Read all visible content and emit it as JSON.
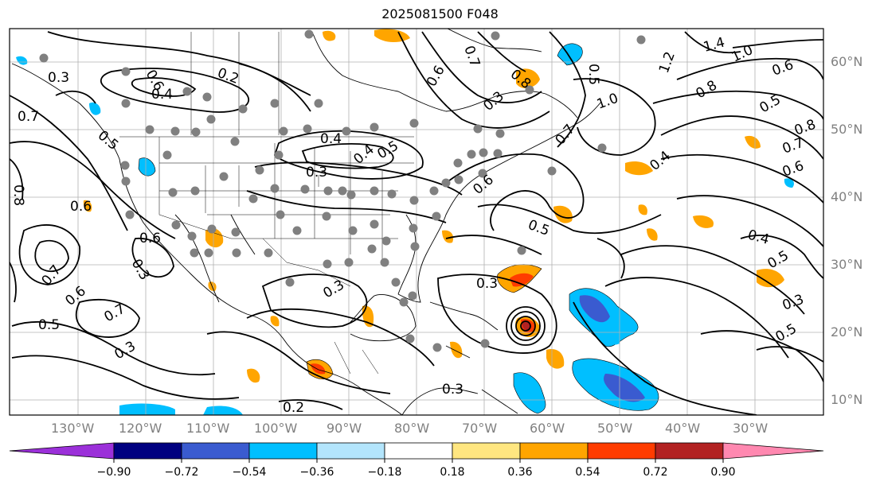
{
  "title": "2025081500 F048",
  "lon_labels": [
    "130°W",
    "120°W",
    "110°W",
    "100°W",
    "90°W",
    "80°W",
    "70°W",
    "60°W",
    "50°W",
    "40°W",
    "30°W"
  ],
  "lat_labels": [
    "60°N",
    "50°N",
    "40°N",
    "30°N",
    "20°N",
    "10°N"
  ],
  "colorbar": {
    "ticks": [
      "−0.90",
      "−0.72",
      "−0.54",
      "−0.36",
      "−0.18",
      "0.18",
      "0.36",
      "0.54",
      "0.72",
      "0.90"
    ],
    "colors": [
      "#9b30d9",
      "#000080",
      "#3a5bd0",
      "#00bfff",
      "#b3e5fc",
      "#ffffff",
      "#ffe680",
      "#ffa500",
      "#ff3c00",
      "#b22222",
      "#ff88b0"
    ]
  },
  "contour_labels": [
    "0.2",
    "0.4",
    "0.6",
    "0.3",
    "0.4",
    "0.3",
    "0.5",
    "0.4",
    "0.7",
    "0.5",
    "0.6",
    "0.8",
    "0.6",
    "0.3",
    "0.6",
    "0.5",
    "0.7",
    "0.3",
    "0.7",
    "1.0",
    "1.4",
    "1.0",
    "1.2",
    "0.6",
    "0.8",
    "0.5",
    "0.8",
    "0.7",
    "0.6",
    "0.4",
    "0.5",
    "0.4",
    "0.5",
    "0.3",
    "0.5",
    "0.7",
    "0.6",
    "0.8",
    "0.3",
    "0.7",
    "0.6",
    "0.5",
    "0.3",
    "0.3",
    "0.2",
    "0.3"
  ]
}
